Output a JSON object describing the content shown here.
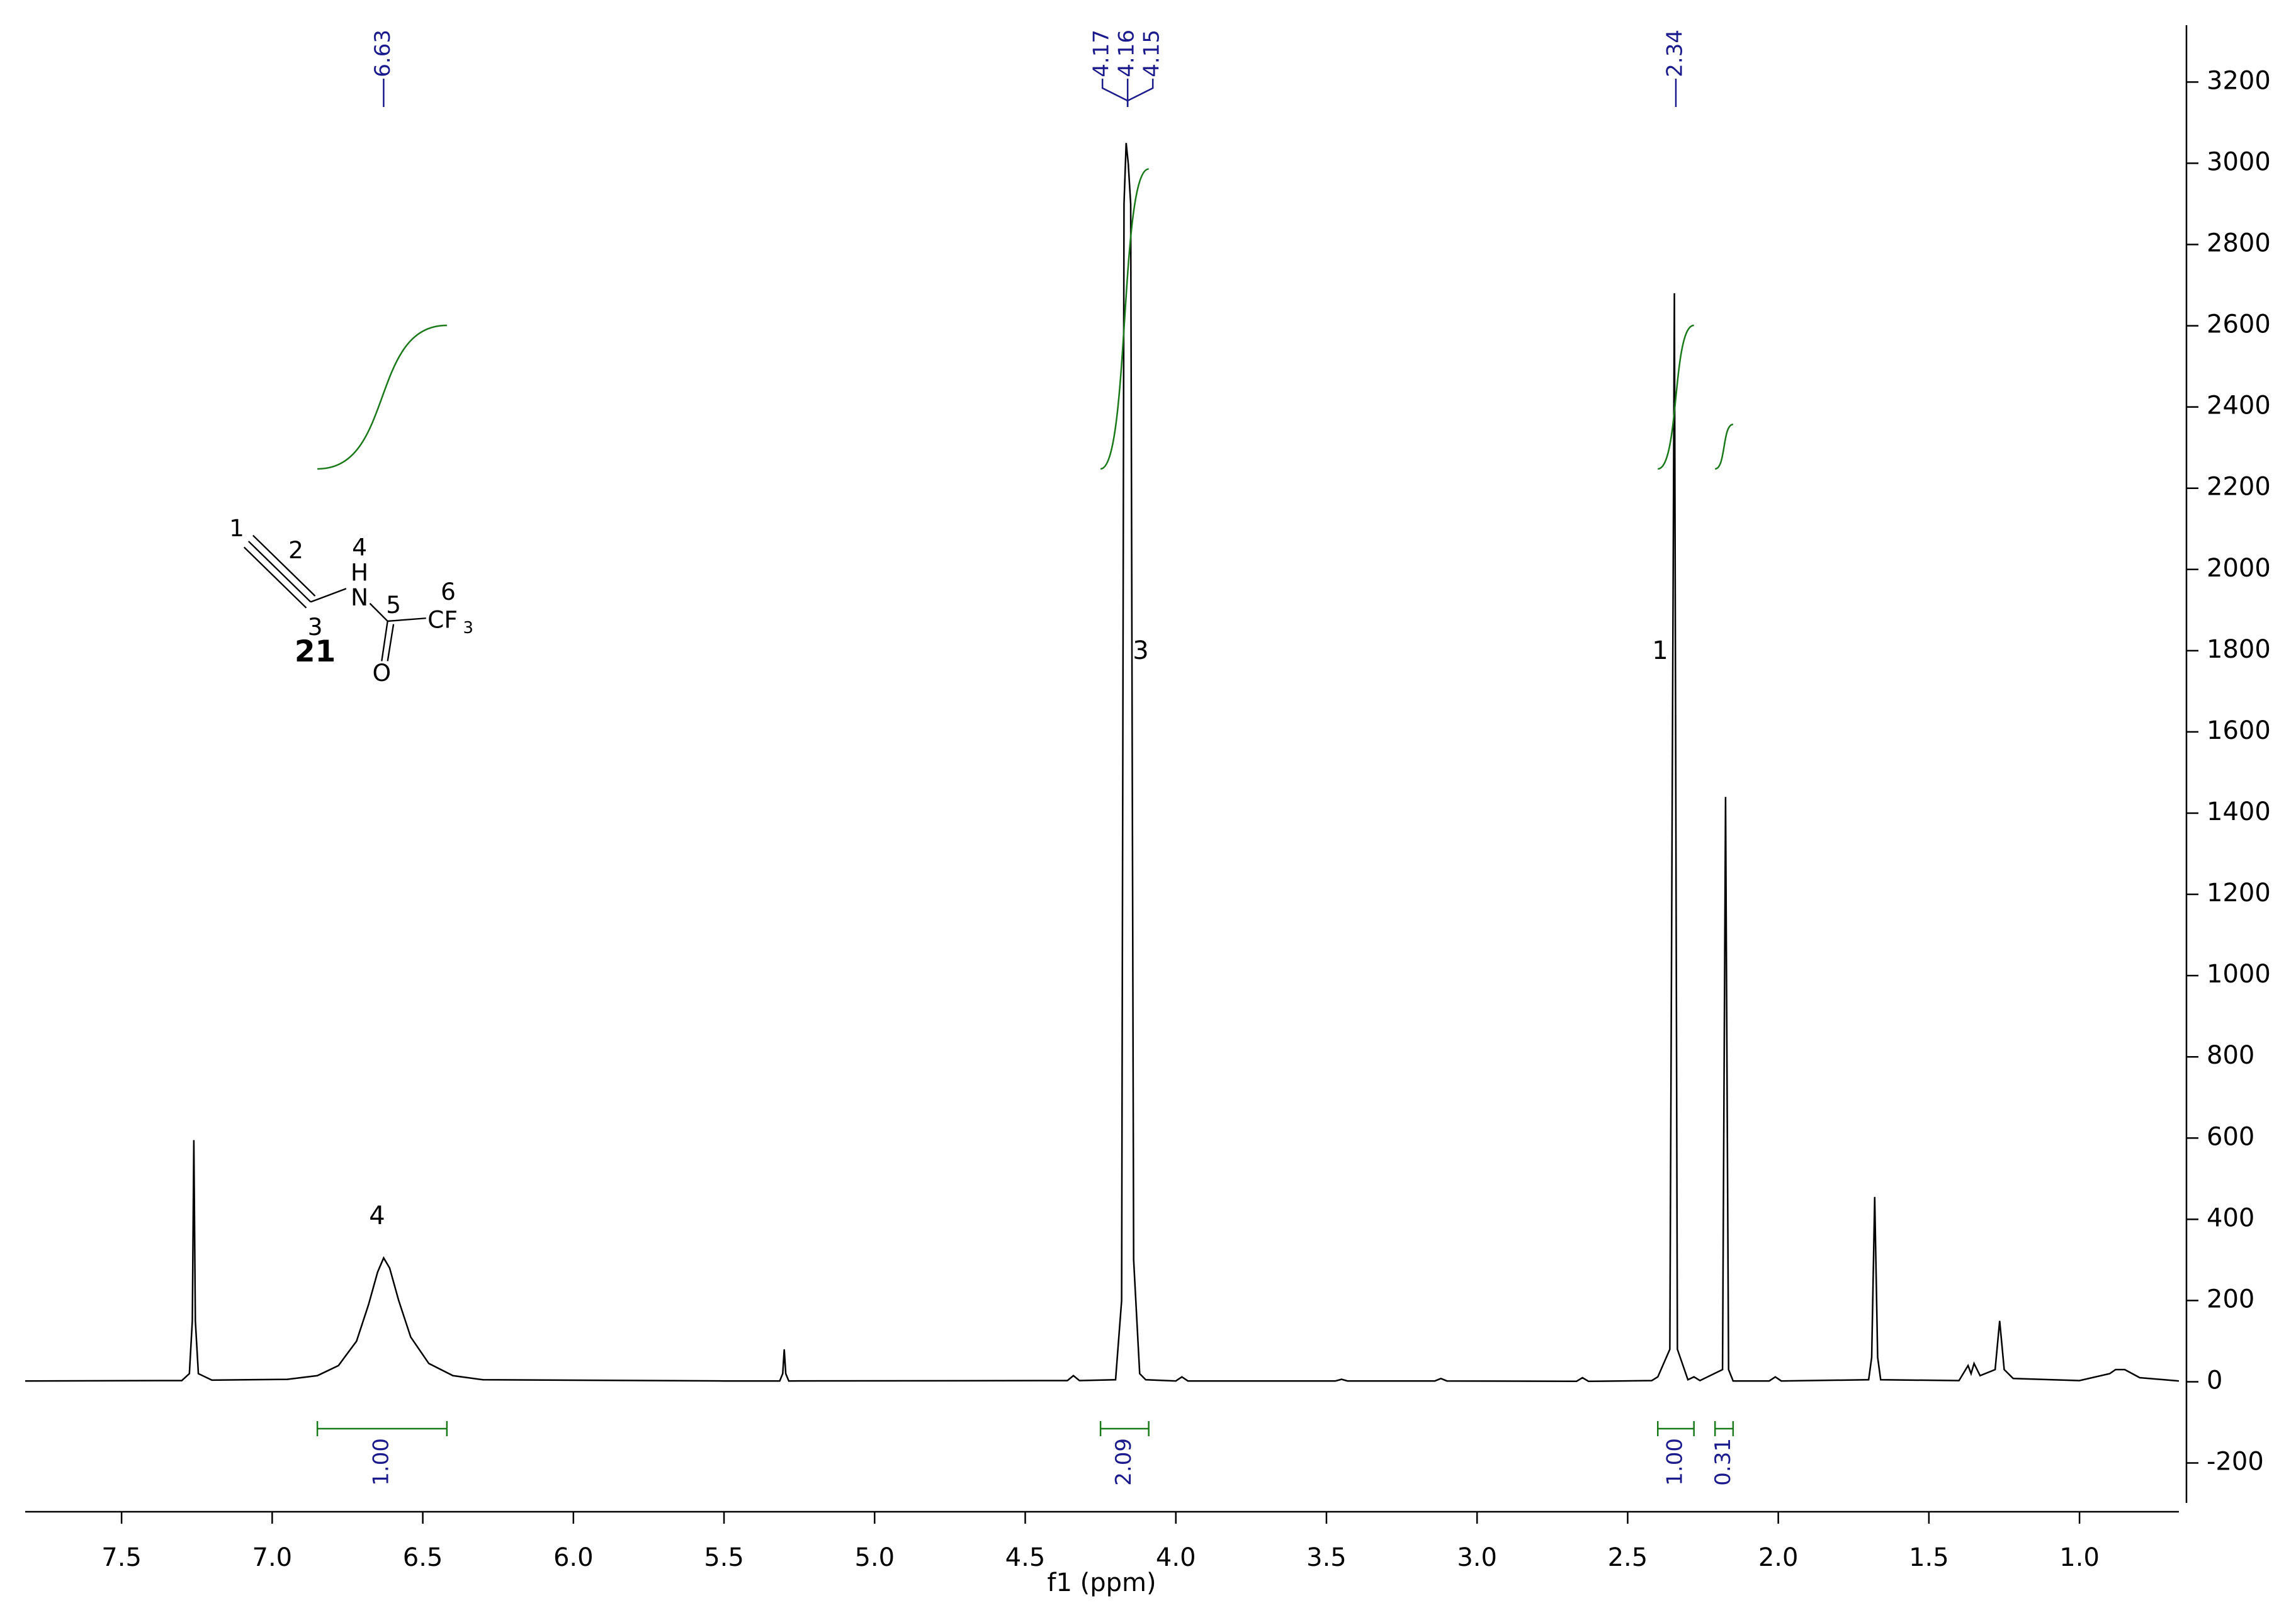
{
  "chart_data": {
    "type": "line",
    "x_label": "f1 (ppm)",
    "color": "#000000",
    "x": [
      7.82,
      7.3,
      7.275,
      7.265,
      7.26,
      7.255,
      7.245,
      7.2,
      6.95,
      6.85,
      6.78,
      6.72,
      6.68,
      6.65,
      6.63,
      6.61,
      6.58,
      6.54,
      6.48,
      6.4,
      6.3,
      5.5,
      5.315,
      5.305,
      5.3,
      5.295,
      5.285,
      4.36,
      4.34,
      4.32,
      4.2,
      4.18,
      4.172,
      4.165,
      4.158,
      4.15,
      4.14,
      4.12,
      4.1,
      4.0,
      3.98,
      3.96,
      3.47,
      3.45,
      3.43,
      3.14,
      3.12,
      3.1,
      2.67,
      2.65,
      2.63,
      2.42,
      2.4,
      2.36,
      2.345,
      2.335,
      2.3,
      2.28,
      2.26,
      2.185,
      2.175,
      2.165,
      2.15,
      2.03,
      2.01,
      1.99,
      1.7,
      1.69,
      1.68,
      1.67,
      1.66,
      1.4,
      1.37,
      1.36,
      1.35,
      1.33,
      1.28,
      1.265,
      1.25,
      1.22,
      1.0,
      0.9,
      0.88,
      0.85,
      0.8,
      0.67
    ],
    "values": [
      2,
      3,
      20,
      150,
      595,
      150,
      20,
      4,
      6,
      15,
      40,
      100,
      190,
      270,
      305,
      280,
      200,
      110,
      45,
      15,
      5,
      2,
      2,
      20,
      80,
      20,
      2,
      3,
      15,
      3,
      5,
      200,
      2900,
      3050,
      3000,
      2900,
      300,
      20,
      5,
      2,
      12,
      2,
      2,
      6,
      2,
      2,
      8,
      2,
      1,
      10,
      1,
      3,
      12,
      80,
      2680,
      80,
      5,
      12,
      3,
      30,
      1440,
      30,
      2,
      2,
      12,
      2,
      5,
      60,
      455,
      60,
      5,
      3,
      40,
      20,
      45,
      15,
      30,
      150,
      30,
      8,
      3,
      20,
      30,
      30,
      10,
      2
    ],
    "xlim": [
      7.82,
      0.67
    ],
    "xticks": [
      7.5,
      {
        "value": 7,
        "label": "7.0"
      },
      6.5,
      {
        "value": 6,
        "label": "6.0"
      },
      5.5,
      {
        "value": 5,
        "label": "5.0"
      },
      4.5,
      {
        "value": 4,
        "label": "4.0"
      },
      3.5,
      {
        "value": 3,
        "label": "3.0"
      },
      2.5,
      {
        "value": 2,
        "label": "2.0"
      },
      1.5,
      {
        "value": 1,
        "label": "1.0"
      }
    ],
    "ylim": [
      -320,
      3340
    ],
    "yticks": [
      -200,
      0,
      200,
      400,
      600,
      800,
      1000,
      1200,
      1400,
      1600,
      1800,
      2000,
      2200,
      2400,
      2600,
      2800,
      3000,
      3200
    ],
    "peak_labels": [
      6.63,
      4.17,
      4.16,
      4.15,
      2.34
    ],
    "peak_label_color": "#1a1a8c",
    "atom_labels": [
      "4",
      "3",
      "1"
    ],
    "integrals": {
      "color": "#1a7a1a",
      "ranges": [
        [
          6.85,
          6.42
        ],
        [
          4.25,
          4.09
        ],
        [
          2.4,
          2.28
        ],
        [
          2.21,
          2.15
        ]
      ],
      "values": [
        1,
        2.09,
        1,
        0.31
      ],
      "value_labels": [
        "1.00",
        "2.09",
        "1.00",
        "0.31"
      ]
    },
    "structure": {
      "compound": "21",
      "numbers": [
        "1",
        "2",
        "3",
        "4",
        "5",
        "6"
      ],
      "atoms": [
        "H",
        "N",
        "O",
        "CF"
      ],
      "subscript": "3"
    }
  }
}
